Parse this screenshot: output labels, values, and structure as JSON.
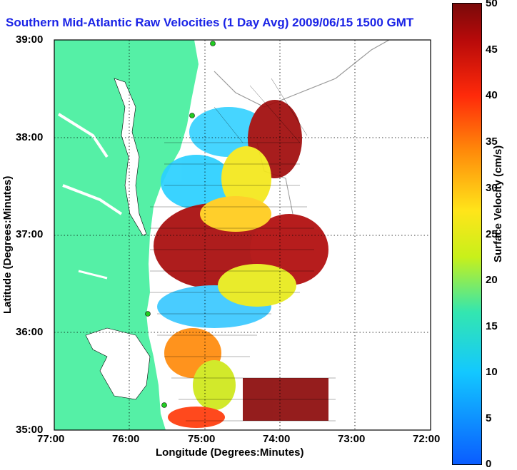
{
  "title": "Southern Mid-Atlantic Raw Velocities (1 Day Avg) 2009/06/15 1500 GMT",
  "x_axis": {
    "label": "Longitude (Degrees:Minutes)",
    "ticks": [
      "77:00",
      "76:00",
      "75:00",
      "74:00",
      "73:00",
      "72:00"
    ]
  },
  "y_axis": {
    "label": "Latitude (Degrees:Minutes)",
    "ticks": [
      "39:00",
      "38:00",
      "37:00",
      "36:00",
      "35:00"
    ]
  },
  "colorbar": {
    "label": "Surface Velocity (cm/s)",
    "ticks": [
      "50",
      "45",
      "40",
      "35",
      "30",
      "25",
      "20",
      "15",
      "10",
      "5",
      "0"
    ]
  },
  "colors": {
    "title": "#1a23e6",
    "land": "#55f0a6",
    "coast_stations": "#22cc22",
    "ocean": "#ffffff"
  }
}
